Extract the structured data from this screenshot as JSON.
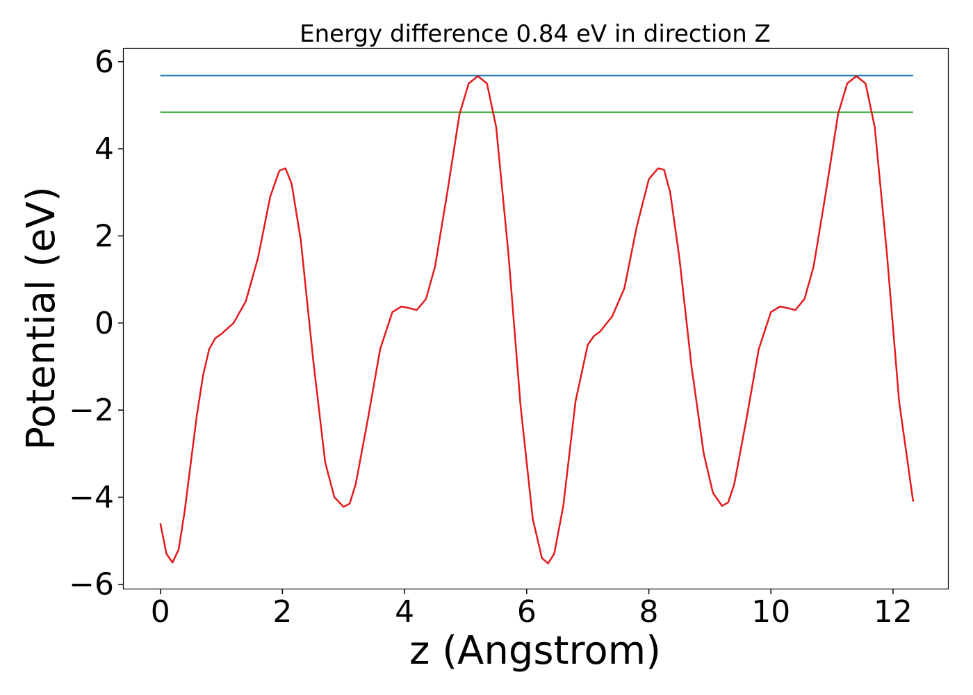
{
  "chart_data": {
    "type": "line",
    "title": "Energy difference 0.84 eV in direction Z",
    "xlabel": "z (Angstrom)",
    "ylabel": "Potential (eV)",
    "xlim": [
      -0.6,
      12.9
    ],
    "ylim": [
      -6.1,
      6.3
    ],
    "xticks": [
      0,
      2,
      4,
      6,
      8,
      10,
      12
    ],
    "yticks": [
      -6,
      -4,
      -2,
      0,
      2,
      4,
      6
    ],
    "xtick_labels": [
      "0",
      "2",
      "4",
      "6",
      "8",
      "10",
      "12"
    ],
    "ytick_labels": [
      "−6",
      "−4",
      "−2",
      "0",
      "2",
      "4",
      "6"
    ],
    "grid": false,
    "series": [
      {
        "color": "#1f77b4",
        "x": [
          0,
          12.33
        ],
        "y": [
          5.68,
          5.68
        ]
      },
      {
        "color": "#2ca02c",
        "x": [
          0,
          12.33
        ],
        "y": [
          4.84,
          4.84
        ]
      },
      {
        "color": "#e31a1c",
        "x": [
          0,
          0.1,
          0.2,
          0.3,
          0.4,
          0.5,
          0.6,
          0.7,
          0.8,
          0.9,
          1.0,
          1.2,
          1.4,
          1.6,
          1.8,
          1.95,
          2.05,
          2.15,
          2.3,
          2.5,
          2.7,
          2.85,
          3.0,
          3.1,
          3.2,
          3.4,
          3.6,
          3.8,
          3.95,
          4.05,
          4.2,
          4.35,
          4.5,
          4.7,
          4.9,
          5.05,
          5.2,
          5.35,
          5.5,
          5.7,
          5.9,
          6.1,
          6.25,
          6.35,
          6.45,
          6.6,
          6.8,
          7.0,
          7.1,
          7.2,
          7.4,
          7.6,
          7.8,
          8.0,
          8.15,
          8.25,
          8.35,
          8.5,
          8.7,
          8.9,
          9.05,
          9.2,
          9.3,
          9.4,
          9.6,
          9.8,
          10.0,
          10.15,
          10.25,
          10.4,
          10.55,
          10.7,
          10.9,
          11.1,
          11.25,
          11.4,
          11.55,
          11.7,
          11.9,
          12.1,
          12.33
        ],
        "y": [
          -4.6,
          -5.3,
          -5.5,
          -5.2,
          -4.3,
          -3.2,
          -2.1,
          -1.2,
          -0.6,
          -0.35,
          -0.25,
          0.0,
          0.5,
          1.5,
          2.9,
          3.5,
          3.55,
          3.2,
          1.9,
          -0.8,
          -3.2,
          -4.0,
          -4.22,
          -4.15,
          -3.7,
          -2.2,
          -0.6,
          0.25,
          0.38,
          0.35,
          0.3,
          0.55,
          1.3,
          3.0,
          4.8,
          5.5,
          5.67,
          5.5,
          4.5,
          1.6,
          -1.9,
          -4.5,
          -5.4,
          -5.52,
          -5.3,
          -4.2,
          -1.8,
          -0.5,
          -0.3,
          -0.2,
          0.15,
          0.8,
          2.2,
          3.3,
          3.55,
          3.52,
          3.0,
          1.5,
          -1.0,
          -3.0,
          -3.9,
          -4.2,
          -4.12,
          -3.7,
          -2.2,
          -0.6,
          0.25,
          0.38,
          0.35,
          0.3,
          0.55,
          1.3,
          3.0,
          4.8,
          5.5,
          5.67,
          5.5,
          4.5,
          1.6,
          -1.8,
          -4.1
        ]
      }
    ]
  }
}
